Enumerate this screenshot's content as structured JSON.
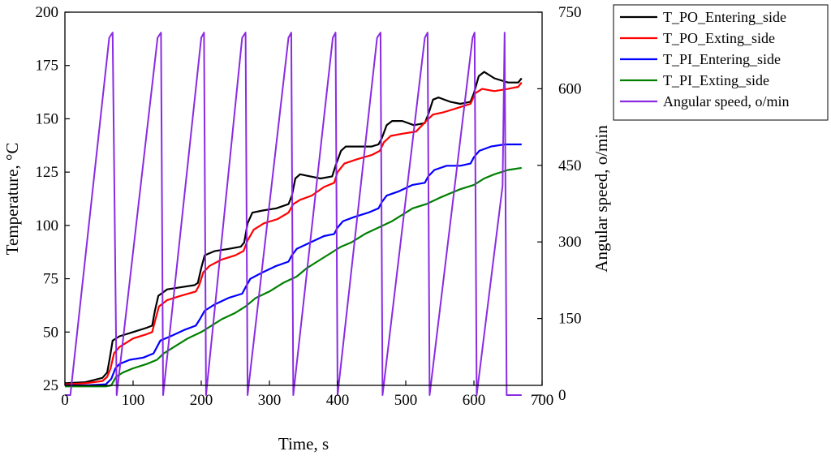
{
  "chart_data": {
    "type": "line",
    "xlabel": "Time, s",
    "ylabel": "Temperature, °C",
    "y2label": "Angular speed, o/min",
    "xlim": [
      0,
      700
    ],
    "ylim": [
      25,
      200
    ],
    "y2lim": [
      0,
      750
    ],
    "x_ticks": [
      "0",
      "100",
      "200",
      "300",
      "400",
      "500",
      "600",
      "700"
    ],
    "y_ticks": [
      "25",
      "50",
      "75",
      "100",
      "125",
      "150",
      "175",
      "200"
    ],
    "y2_ticks": [
      "0",
      "150",
      "300",
      "450",
      "600",
      "750"
    ],
    "grid": false,
    "legend_position": "top-right-outside",
    "series": [
      {
        "name": "T_PO_Entering_side",
        "axis": "left",
        "color": "#000000",
        "points": [
          [
            0,
            26
          ],
          [
            30,
            26.5
          ],
          [
            55,
            28.5
          ],
          [
            62,
            31
          ],
          [
            66,
            38
          ],
          [
            70,
            46
          ],
          [
            80,
            48
          ],
          [
            100,
            50
          ],
          [
            120,
            52
          ],
          [
            128,
            53
          ],
          [
            132,
            60
          ],
          [
            137,
            67
          ],
          [
            150,
            70
          ],
          [
            170,
            71
          ],
          [
            190,
            72
          ],
          [
            195,
            73
          ],
          [
            200,
            80
          ],
          [
            205,
            86
          ],
          [
            220,
            88
          ],
          [
            240,
            89
          ],
          [
            258,
            90
          ],
          [
            263,
            92
          ],
          [
            268,
            101
          ],
          [
            275,
            106
          ],
          [
            290,
            107
          ],
          [
            310,
            108
          ],
          [
            328,
            110
          ],
          [
            333,
            114
          ],
          [
            338,
            122
          ],
          [
            345,
            124
          ],
          [
            360,
            123
          ],
          [
            375,
            122
          ],
          [
            392,
            123
          ],
          [
            397,
            128
          ],
          [
            405,
            135
          ],
          [
            412,
            137
          ],
          [
            430,
            137
          ],
          [
            450,
            137
          ],
          [
            460,
            138
          ],
          [
            465,
            141
          ],
          [
            472,
            147
          ],
          [
            480,
            149
          ],
          [
            495,
            149
          ],
          [
            512,
            147
          ],
          [
            528,
            148
          ],
          [
            533,
            152
          ],
          [
            540,
            159
          ],
          [
            548,
            160
          ],
          [
            565,
            158
          ],
          [
            580,
            157
          ],
          [
            595,
            158
          ],
          [
            600,
            162
          ],
          [
            607,
            170
          ],
          [
            615,
            172
          ],
          [
            630,
            169
          ],
          [
            650,
            167
          ],
          [
            665,
            167
          ],
          [
            670,
            169
          ]
        ]
      },
      {
        "name": "T_PO_Exting_side",
        "axis": "left",
        "color": "#ff0000",
        "points": [
          [
            0,
            25.5
          ],
          [
            30,
            26
          ],
          [
            55,
            27
          ],
          [
            62,
            29
          ],
          [
            67,
            33
          ],
          [
            72,
            40
          ],
          [
            80,
            43
          ],
          [
            100,
            47
          ],
          [
            120,
            49
          ],
          [
            128,
            50
          ],
          [
            132,
            55
          ],
          [
            138,
            62
          ],
          [
            150,
            65
          ],
          [
            170,
            67
          ],
          [
            192,
            69
          ],
          [
            197,
            72
          ],
          [
            203,
            78
          ],
          [
            212,
            81
          ],
          [
            230,
            84
          ],
          [
            250,
            86
          ],
          [
            262,
            88
          ],
          [
            268,
            93
          ],
          [
            277,
            98
          ],
          [
            292,
            101
          ],
          [
            312,
            103
          ],
          [
            328,
            106
          ],
          [
            335,
            110
          ],
          [
            345,
            112
          ],
          [
            362,
            114
          ],
          [
            380,
            118
          ],
          [
            395,
            120
          ],
          [
            400,
            125
          ],
          [
            410,
            129
          ],
          [
            428,
            131
          ],
          [
            450,
            133
          ],
          [
            462,
            135
          ],
          [
            468,
            139
          ],
          [
            478,
            142
          ],
          [
            495,
            143
          ],
          [
            515,
            144
          ],
          [
            530,
            149
          ],
          [
            540,
            152
          ],
          [
            555,
            153
          ],
          [
            575,
            155
          ],
          [
            595,
            157
          ],
          [
            602,
            162
          ],
          [
            612,
            164
          ],
          [
            630,
            163
          ],
          [
            650,
            164
          ],
          [
            665,
            165
          ],
          [
            670,
            167
          ]
        ]
      },
      {
        "name": "T_PI_Entering_side",
        "axis": "left",
        "color": "#0000ff",
        "points": [
          [
            0,
            25
          ],
          [
            30,
            25
          ],
          [
            60,
            25.5
          ],
          [
            68,
            28
          ],
          [
            74,
            33
          ],
          [
            80,
            35
          ],
          [
            95,
            37
          ],
          [
            115,
            38
          ],
          [
            130,
            40
          ],
          [
            135,
            43
          ],
          [
            140,
            46
          ],
          [
            155,
            48
          ],
          [
            175,
            51
          ],
          [
            192,
            53
          ],
          [
            198,
            56
          ],
          [
            205,
            60
          ],
          [
            220,
            63
          ],
          [
            240,
            66
          ],
          [
            260,
            68
          ],
          [
            265,
            71
          ],
          [
            272,
            75
          ],
          [
            290,
            78
          ],
          [
            310,
            81
          ],
          [
            328,
            83
          ],
          [
            333,
            86
          ],
          [
            340,
            89
          ],
          [
            360,
            92
          ],
          [
            380,
            95
          ],
          [
            395,
            96
          ],
          [
            400,
            99
          ],
          [
            408,
            102
          ],
          [
            425,
            104
          ],
          [
            445,
            106
          ],
          [
            460,
            108
          ],
          [
            465,
            111
          ],
          [
            472,
            114
          ],
          [
            490,
            116
          ],
          [
            510,
            119
          ],
          [
            528,
            120
          ],
          [
            533,
            123
          ],
          [
            542,
            126
          ],
          [
            560,
            128
          ],
          [
            580,
            128
          ],
          [
            595,
            129
          ],
          [
            600,
            132
          ],
          [
            608,
            135
          ],
          [
            625,
            137
          ],
          [
            645,
            138
          ],
          [
            670,
            138
          ]
        ]
      },
      {
        "name": "T_PI_Exting_side",
        "axis": "left",
        "color": "#008000",
        "points": [
          [
            0,
            24.5
          ],
          [
            30,
            24.5
          ],
          [
            60,
            24.5
          ],
          [
            68,
            25
          ],
          [
            75,
            29
          ],
          [
            85,
            31
          ],
          [
            100,
            33
          ],
          [
            120,
            35
          ],
          [
            135,
            37
          ],
          [
            145,
            40
          ],
          [
            160,
            43
          ],
          [
            180,
            47
          ],
          [
            200,
            50
          ],
          [
            215,
            53
          ],
          [
            230,
            56
          ],
          [
            250,
            59
          ],
          [
            265,
            62
          ],
          [
            280,
            66
          ],
          [
            300,
            69
          ],
          [
            320,
            73
          ],
          [
            340,
            76
          ],
          [
            355,
            80
          ],
          [
            370,
            83
          ],
          [
            390,
            87
          ],
          [
            405,
            90
          ],
          [
            420,
            92
          ],
          [
            440,
            96
          ],
          [
            460,
            99
          ],
          [
            480,
            102
          ],
          [
            495,
            105
          ],
          [
            510,
            108
          ],
          [
            530,
            110
          ],
          [
            550,
            113
          ],
          [
            565,
            115
          ],
          [
            580,
            117
          ],
          [
            600,
            119
          ],
          [
            615,
            122
          ],
          [
            630,
            124
          ],
          [
            650,
            126
          ],
          [
            670,
            127
          ]
        ]
      },
      {
        "name": "Angular speed, o/min",
        "axis": "right",
        "color": "#8a2be2",
        "points": [
          [
            0,
            0
          ],
          [
            8,
            0
          ],
          [
            65,
            700
          ],
          [
            70,
            710
          ],
          [
            76,
            0
          ],
          [
            136,
            700
          ],
          [
            141,
            710
          ],
          [
            144,
            0
          ],
          [
            200,
            700
          ],
          [
            204,
            710
          ],
          [
            207,
            0
          ],
          [
            260,
            700
          ],
          [
            265,
            710
          ],
          [
            268,
            0
          ],
          [
            328,
            700
          ],
          [
            332,
            710
          ],
          [
            335,
            0
          ],
          [
            393,
            700
          ],
          [
            397,
            710
          ],
          [
            400,
            0
          ],
          [
            458,
            700
          ],
          [
            463,
            710
          ],
          [
            466,
            0
          ],
          [
            528,
            700
          ],
          [
            532,
            710
          ],
          [
            535,
            0
          ],
          [
            598,
            700
          ],
          [
            601,
            710
          ],
          [
            604,
            0
          ],
          [
            642,
            410
          ],
          [
            645,
            710
          ],
          [
            648,
            0
          ],
          [
            670,
            0
          ]
        ]
      }
    ]
  }
}
